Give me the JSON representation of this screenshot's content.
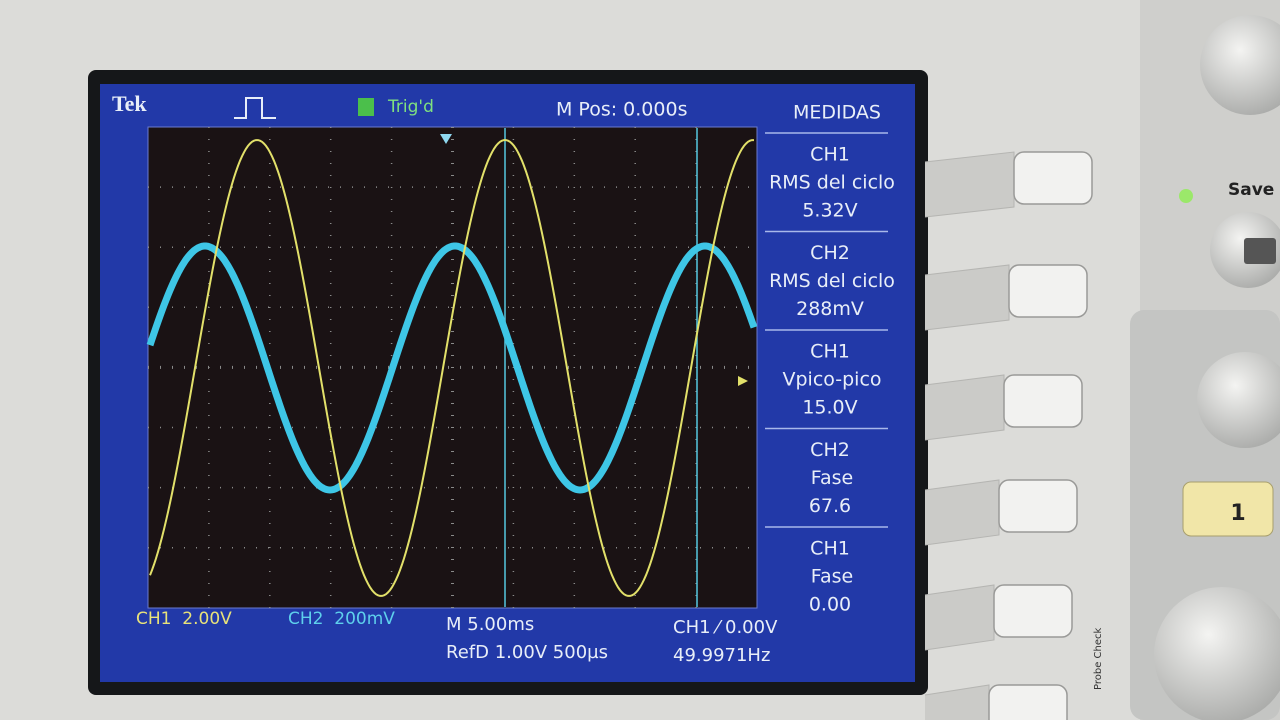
{
  "header": {
    "brand": "Tek",
    "trigger": "Trig'd",
    "position": "M Pos: 0.000s"
  },
  "menu": {
    "title": "MEDIDAS",
    "items": [
      {
        "channel": "CH1",
        "label": "RMS del ciclo",
        "value": "5.32V"
      },
      {
        "channel": "CH2",
        "label": "RMS del ciclo",
        "value": "288mV"
      },
      {
        "channel": "CH1",
        "label": "Vpico-pico",
        "value": "15.0V"
      },
      {
        "channel": "CH2",
        "label": "Fase",
        "value": "67.6"
      },
      {
        "channel": "CH1",
        "label": "Fase",
        "value": "0.00"
      }
    ]
  },
  "footer": {
    "ch1": "CH1  2.00V",
    "ch2": "CH2  200mV",
    "timebase": "M 5.00ms",
    "ref": "RefD 1.00V 500µs",
    "trigger_level": "CH1 ⁄ 0.00V",
    "frequency": "49.9971Hz"
  },
  "panel": {
    "save": "Save",
    "channel_button": "1",
    "probe_check": "Probe Check"
  }
}
